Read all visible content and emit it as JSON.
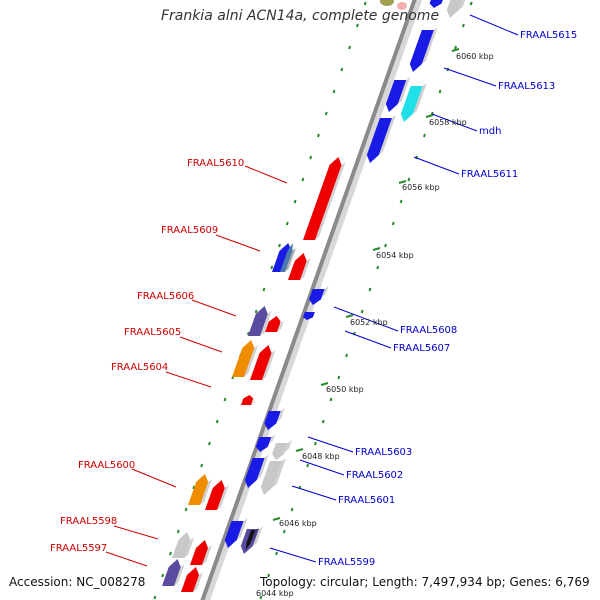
{
  "title": "Frankia alni ACN14a, complete genome",
  "accession": "Accession: NC_008278",
  "topology": "Topology: circular; Length: 7,497,934 bp; Genes: 6,769",
  "colors": {
    "forward_label": "#cc0000",
    "reverse_label": "#0000cc",
    "backbone": "#8a8a8a",
    "tick": "#2a8a2a",
    "red": "#ee0000",
    "blue": "#1a1ae6",
    "orange": "#f08c00",
    "gray": "#c8c8c8",
    "cyan": "#22e0e8",
    "purple": "#5a4aa0",
    "olive": "#a0a050"
  },
  "kbp_ticks": [
    "6044 kbp",
    "6046 kbp",
    "6048 kbp",
    "6050 kbp",
    "6052 kbp",
    "6054 kbp",
    "6056 kbp",
    "6058 kbp",
    "6060 kbp"
  ],
  "forward_genes": [
    "FRAAL5610",
    "FRAAL5609",
    "FRAAL5606",
    "FRAAL5605",
    "FRAAL5604",
    "FRAAL5600",
    "FRAAL5598",
    "FRAAL5597"
  ],
  "reverse_genes": [
    "FRAAL5615",
    "FRAAL5613",
    "mdh",
    "FRAAL5611",
    "FRAAL5608",
    "FRAAL5607",
    "FRAAL5603",
    "FRAAL5602",
    "FRAAL5601",
    "FRAAL5599"
  ]
}
